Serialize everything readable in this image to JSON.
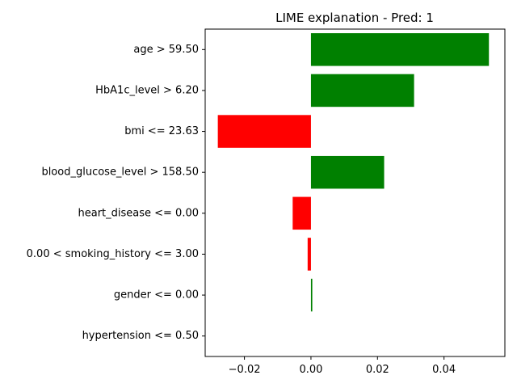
{
  "chart_data": {
    "type": "bar",
    "orientation": "horizontal",
    "title": "LIME explanation - Pred: 1",
    "xlabel": "",
    "ylabel": "",
    "xlim": [
      -0.0318,
      0.0583
    ],
    "grid": false,
    "categories": [
      "age > 59.50",
      "HbA1c_level > 6.20",
      "bmi <= 23.63",
      "blood_glucose_level > 158.50",
      "heart_disease <= 0.00",
      "0.00 < smoking_history <= 3.00",
      "gender <= 0.00",
      "hypertension <= 0.50"
    ],
    "values": [
      0.0535,
      0.031,
      -0.028,
      0.022,
      -0.0055,
      -0.001,
      0.0004,
      0.0
    ],
    "x_ticks": [
      -0.02,
      0.0,
      0.02,
      0.04
    ],
    "x_tick_labels": [
      "−0.02",
      "0.00",
      "0.02",
      "0.04"
    ],
    "colors": {
      "positive": "#008000",
      "negative": "#ff0000"
    }
  }
}
